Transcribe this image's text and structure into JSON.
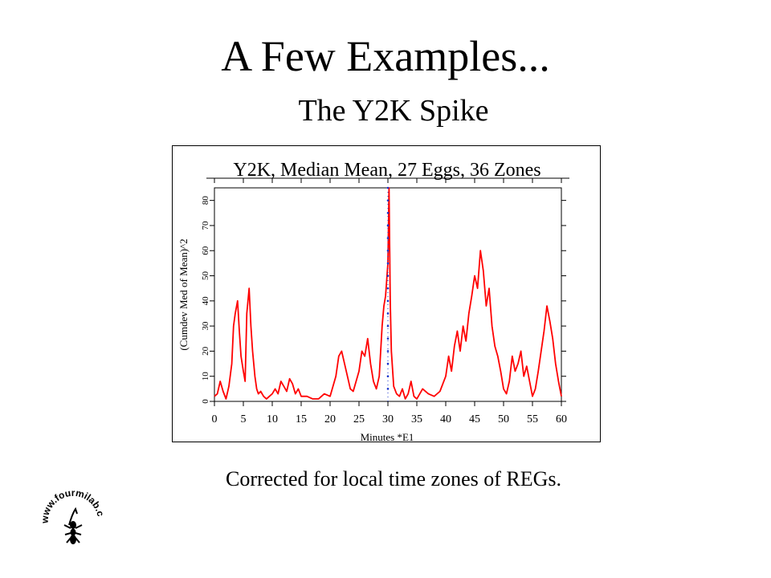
{
  "slide": {
    "title": "A Few Examples...",
    "subtitle": "The Y2K Spike",
    "caption": "Corrected for local time zones of REGs.",
    "logo_text": "www.fourmilab.ch"
  },
  "colors": {
    "series": "#ff0000",
    "spike_markers": "#1a33cc",
    "axis": "#000000"
  },
  "chart_data": {
    "type": "line",
    "title": "Y2K, Median Mean, 27 Eggs, 36 Zones",
    "xlabel": "Minutes  *E1",
    "ylabel": "(Cumdev Med of Mean)^2",
    "xlim": [
      0,
      60
    ],
    "ylim": [
      0,
      85
    ],
    "xticks": [
      0,
      5,
      10,
      15,
      20,
      25,
      30,
      35,
      40,
      45,
      50,
      55,
      60
    ],
    "yticks": [
      0,
      10,
      20,
      30,
      40,
      50,
      60,
      70,
      80
    ],
    "grid": false,
    "legend": "none",
    "vertical_marker_x": 30,
    "series": [
      {
        "x": [
          0,
          0.5,
          1,
          1.5,
          2,
          2.5,
          3,
          3.3,
          3.6,
          4,
          4.3,
          4.6,
          5,
          5.3,
          5.6,
          6,
          6.3,
          6.6,
          7,
          7.3,
          7.6,
          8,
          8.5,
          9,
          9.5,
          10,
          10.5,
          11,
          11.5,
          12,
          12.5,
          13,
          13.5,
          14,
          14.5,
          15,
          16,
          17,
          18,
          19,
          20,
          21,
          21.5,
          22,
          22.5,
          23,
          23.5,
          24,
          24.5,
          25,
          25.5,
          26,
          26.5,
          27,
          27.5,
          28,
          28.5,
          29,
          29.3,
          29.6,
          30,
          30.2,
          30.4,
          30.6,
          31,
          31.5,
          32,
          32.5,
          33,
          33.5,
          34,
          34.5,
          35,
          36,
          37,
          38,
          39,
          40,
          40.5,
          41,
          41.5,
          42,
          42.5,
          43,
          43.5,
          44,
          44.5,
          45,
          45.5,
          46,
          46.5,
          47,
          47.5,
          48,
          48.5,
          49,
          49.5,
          50,
          50.5,
          51,
          51.5,
          52,
          52.5,
          53,
          53.5,
          54,
          54.5,
          55,
          55.5,
          56,
          56.5,
          57,
          57.5,
          58,
          58.5,
          59,
          59.5,
          60
        ],
        "y": [
          2,
          3,
          8,
          4,
          1,
          6,
          15,
          30,
          35,
          40,
          28,
          18,
          12,
          8,
          35,
          45,
          30,
          20,
          10,
          5,
          3,
          4,
          2,
          1,
          2,
          3,
          5,
          3,
          8,
          6,
          4,
          9,
          7,
          3,
          5,
          2,
          2,
          1,
          1,
          3,
          2,
          10,
          18,
          20,
          15,
          10,
          5,
          4,
          8,
          12,
          20,
          18,
          25,
          15,
          8,
          5,
          10,
          30,
          38,
          42,
          55,
          85,
          40,
          20,
          6,
          3,
          2,
          5,
          1,
          3,
          8,
          2,
          1,
          5,
          3,
          2,
          4,
          10,
          18,
          12,
          22,
          28,
          20,
          30,
          24,
          35,
          42,
          50,
          45,
          60,
          52,
          38,
          45,
          30,
          22,
          18,
          12,
          5,
          3,
          8,
          18,
          12,
          15,
          20,
          10,
          14,
          8,
          2,
          5,
          12,
          20,
          28,
          38,
          32,
          25,
          15,
          8,
          2
        ],
        "note_markers_y": [
          5,
          10,
          15,
          20,
          25,
          30,
          35,
          40,
          45,
          50,
          55,
          60,
          65,
          70,
          75,
          80,
          85
        ]
      }
    ]
  }
}
